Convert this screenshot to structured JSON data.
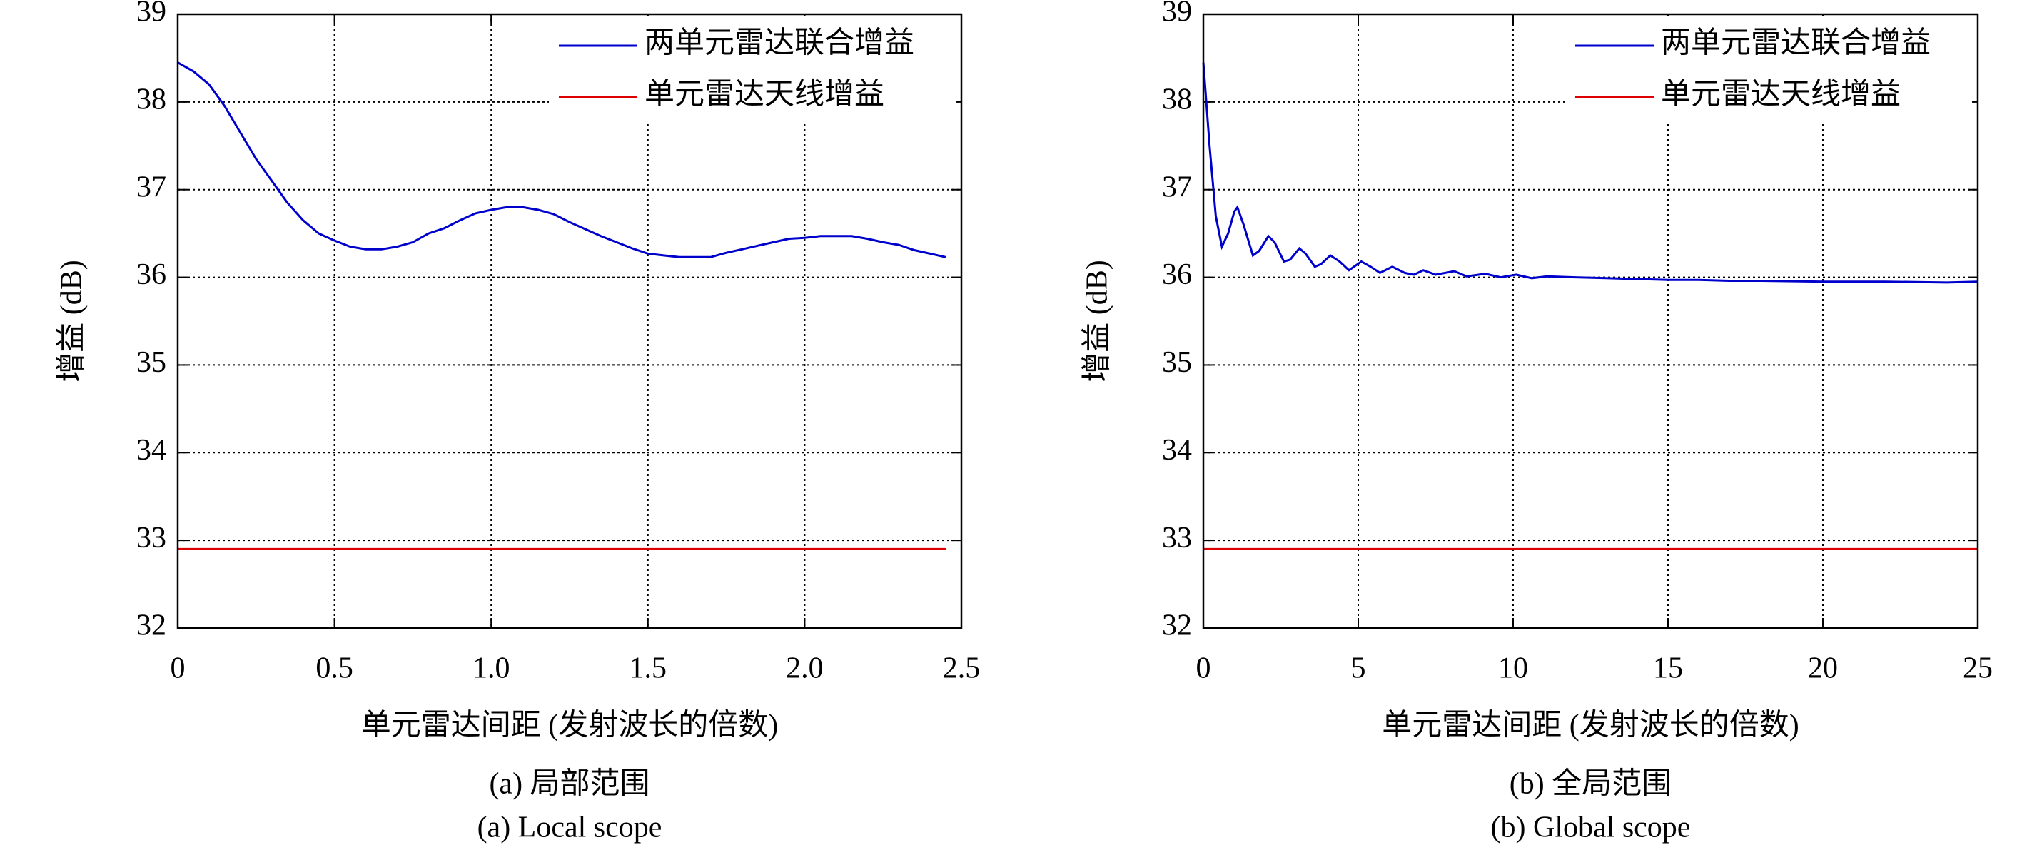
{
  "chart_data": [
    {
      "type": "line",
      "caption": "(a) 局部范围",
      "caption_en": "(a) Local scope",
      "x_label": "单元雷达间距 (发射波长的倍数)",
      "y_label": "增益 (dB)",
      "xlim": [
        0,
        2.5
      ],
      "xticks": [
        0,
        0.5,
        {
          "value": 1,
          "label": "1.0"
        },
        1.5,
        {
          "value": 2,
          "label": "2.0"
        },
        2.5
      ],
      "ylim": [
        32,
        39
      ],
      "yticks": [
        32,
        33,
        34,
        35,
        36,
        37,
        38,
        39
      ],
      "grid": true,
      "legend": "upper right",
      "series": [
        {
          "name": "两单元雷达联合增益",
          "color": "#0000cc",
          "x": [
            0,
            0.05,
            0.1,
            0.15,
            0.2,
            0.25,
            0.3,
            0.35,
            0.4,
            0.45,
            0.5,
            0.55,
            0.6,
            0.65,
            0.7,
            0.75,
            0.8,
            0.85,
            0.9,
            0.95,
            1.0,
            1.05,
            1.1,
            1.15,
            1.2,
            1.25,
            1.3,
            1.35,
            1.4,
            1.45,
            1.5,
            1.55,
            1.6,
            1.65,
            1.7,
            1.75,
            1.8,
            1.85,
            1.9,
            1.95,
            2.0,
            2.05,
            2.1,
            2.15,
            2.2,
            2.25,
            2.3,
            2.35,
            2.4,
            2.45
          ],
          "values": [
            38.45,
            38.35,
            38.2,
            37.95,
            37.65,
            37.35,
            37.1,
            36.85,
            36.65,
            36.5,
            36.42,
            36.35,
            36.32,
            36.32,
            36.35,
            36.4,
            36.5,
            36.56,
            36.65,
            36.73,
            36.77,
            36.8,
            36.8,
            36.77,
            36.72,
            36.63,
            36.55,
            36.47,
            36.4,
            36.33,
            36.27,
            36.25,
            36.23,
            36.23,
            36.23,
            36.28,
            36.32,
            36.36,
            36.4,
            36.44,
            36.45,
            36.47,
            36.47,
            36.47,
            36.44,
            36.4,
            36.37,
            36.31,
            36.27,
            36.23
          ]
        },
        {
          "name": "单元雷达天线增益",
          "color": "#dd0000",
          "x": [
            0,
            2.45
          ],
          "values": [
            32.9,
            32.9
          ]
        }
      ]
    },
    {
      "type": "line",
      "caption": "(b) 全局范围",
      "caption_en": "(b) Global scope",
      "x_label": "单元雷达间距 (发射波长的倍数)",
      "y_label": "增益 (dB)",
      "xlim": [
        0,
        25
      ],
      "xticks": [
        0,
        5,
        10,
        15,
        20,
        25
      ],
      "ylim": [
        32,
        39
      ],
      "yticks": [
        32,
        33,
        34,
        35,
        36,
        37,
        38,
        39
      ],
      "grid": true,
      "legend": "upper right",
      "series": [
        {
          "name": "两单元雷达联合增益",
          "color": "#0000cc",
          "x": [
            0,
            0.2,
            0.4,
            0.6,
            0.8,
            1.0,
            1.1,
            1.3,
            1.6,
            1.8,
            2.1,
            2.3,
            2.6,
            2.8,
            3.1,
            3.3,
            3.6,
            3.8,
            4.1,
            4.4,
            4.7,
            5.1,
            5.4,
            5.7,
            6.1,
            6.5,
            6.8,
            7.1,
            7.5,
            8.1,
            8.5,
            9.1,
            9.6,
            10.1,
            10.6,
            11.1,
            12,
            13,
            14,
            15,
            16,
            17,
            18,
            20,
            22,
            24,
            25
          ],
          "values": [
            38.45,
            37.5,
            36.7,
            36.35,
            36.5,
            36.75,
            36.8,
            36.6,
            36.25,
            36.3,
            36.47,
            36.4,
            36.18,
            36.2,
            36.33,
            36.27,
            36.12,
            36.15,
            36.25,
            36.18,
            36.08,
            36.18,
            36.12,
            36.05,
            36.12,
            36.05,
            36.03,
            36.08,
            36.03,
            36.07,
            36.01,
            36.04,
            36.0,
            36.03,
            35.99,
            36.01,
            36.0,
            35.99,
            35.98,
            35.97,
            35.97,
            35.96,
            35.96,
            35.95,
            35.95,
            35.94,
            35.95
          ]
        },
        {
          "name": "单元雷达天线增益",
          "color": "#dd0000",
          "x": [
            0,
            25
          ],
          "values": [
            32.9,
            32.9
          ]
        }
      ]
    }
  ]
}
